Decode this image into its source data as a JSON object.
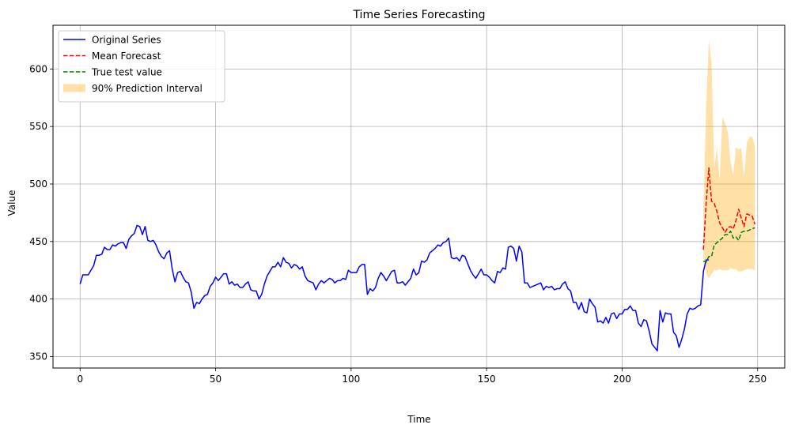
{
  "chart_data": {
    "type": "line",
    "title": "Time Series Forecasting",
    "xlabel": "Time",
    "ylabel": "Value",
    "xlim": [
      -10,
      260
    ],
    "ylim": [
      340,
      638
    ],
    "xticks": [
      0,
      50,
      100,
      150,
      200,
      250
    ],
    "yticks": [
      350,
      400,
      450,
      500,
      550,
      600
    ],
    "xtick_labels": [
      "0",
      "50",
      "100",
      "150",
      "200",
      "250"
    ],
    "ytick_labels": [
      "350",
      "400",
      "450",
      "500",
      "550",
      "600"
    ],
    "grid": true,
    "legend_position": "top-left",
    "legend": [
      {
        "label": "Original Series",
        "kind": "line",
        "color": "#0000ff",
        "dash": "solid"
      },
      {
        "label": "Mean Forecast",
        "kind": "line",
        "color": "#ff0000",
        "dash": "dashed"
      },
      {
        "label": "True test value",
        "kind": "line",
        "color": "#008000",
        "dash": "dashed"
      },
      {
        "label": "90% Prediction Interval",
        "kind": "patch",
        "color": "#ffa500",
        "opacity": 0.35
      }
    ],
    "series": [
      {
        "name": "Original Series",
        "color": "#0000ff",
        "x_start": 0,
        "values": [
          413,
          421,
          421,
          421,
          425,
          429,
          438,
          438,
          439,
          445,
          443,
          443,
          447,
          446,
          448,
          449,
          449,
          444,
          452,
          455,
          457,
          464,
          463,
          456,
          463,
          451,
          450,
          451,
          447,
          441,
          437,
          435,
          440,
          442,
          426,
          415,
          423,
          424,
          419,
          415,
          414,
          406,
          392,
          397,
          396,
          400,
          403,
          404,
          411,
          414,
          419,
          416,
          419,
          422,
          422,
          413,
          415,
          412,
          413,
          410,
          410,
          413,
          415,
          408,
          407,
          407,
          400,
          404,
          413,
          420,
          424,
          428,
          428,
          432,
          428,
          436,
          432,
          431,
          427,
          430,
          429,
          426,
          428,
          420,
          416,
          415,
          414,
          408,
          413,
          416,
          414,
          416,
          418,
          417,
          414,
          416,
          416,
          418,
          417,
          425,
          423,
          423,
          423,
          428,
          430,
          430,
          404,
          409,
          407,
          410,
          418,
          423,
          420,
          416,
          420,
          424,
          425,
          414,
          414,
          415,
          412,
          415,
          418,
          426,
          421,
          423,
          433,
          432,
          434,
          440,
          442,
          444,
          447,
          446,
          449,
          450,
          453,
          436,
          435,
          436,
          433,
          438,
          437,
          431,
          425,
          421,
          418,
          422,
          426,
          421,
          421,
          419,
          416,
          414,
          424,
          423,
          427,
          426,
          445,
          446,
          444,
          433,
          446,
          441,
          414,
          414,
          410,
          411,
          412,
          413,
          414,
          408,
          411,
          410,
          411,
          408,
          409,
          409,
          413,
          415,
          409,
          407,
          397,
          397,
          391,
          397,
          389,
          388,
          400,
          396,
          393,
          380,
          381,
          379,
          384,
          379,
          387,
          388,
          383,
          387,
          387,
          391,
          391,
          394,
          390,
          390,
          379,
          376,
          382,
          381,
          372,
          361,
          358,
          355,
          390,
          380,
          388,
          387,
          387,
          371,
          368,
          358,
          365,
          374,
          387,
          392,
          391,
          392,
          394,
          395,
          424,
          434,
          434
        ]
      },
      {
        "name": "Mean Forecast",
        "color": "#ff0000",
        "x": [
          230,
          231,
          232,
          233,
          234,
          235,
          236,
          237,
          238,
          239,
          240,
          241,
          242,
          243,
          244,
          245,
          246,
          247,
          248,
          249
        ],
        "values": [
          443,
          483,
          514,
          485,
          483,
          476,
          466,
          462,
          458,
          462,
          463,
          461,
          468,
          478,
          470,
          463,
          474,
          473,
          472,
          465
        ]
      },
      {
        "name": "True test value",
        "color": "#008000",
        "x": [
          230,
          231,
          232,
          233,
          234,
          235,
          236,
          237,
          238,
          239,
          240,
          241,
          242,
          243,
          244,
          245,
          246,
          247,
          248,
          249
        ],
        "values": [
          433,
          432,
          437,
          437,
          447,
          449,
          451,
          453,
          456,
          456,
          459,
          453,
          454,
          451,
          458,
          459,
          459,
          460,
          461,
          462
        ]
      }
    ],
    "interval": {
      "name": "90% Prediction Interval",
      "color": "#ffa500",
      "opacity": 0.35,
      "x": [
        230,
        231,
        232,
        233,
        234,
        235,
        236,
        237,
        238,
        239,
        240,
        241,
        242,
        243,
        244,
        245,
        246,
        247,
        248,
        249
      ],
      "upper": [
        478,
        566,
        625,
        605,
        513,
        532,
        503,
        558,
        553,
        545,
        519,
        508,
        532,
        530,
        531,
        505,
        536,
        541,
        541,
        533
      ],
      "lower": [
        436,
        422,
        418,
        422,
        425,
        425,
        426,
        425,
        425,
        425,
        427,
        426,
        426,
        424,
        424,
        425,
        426,
        426,
        426,
        425
      ]
    }
  }
}
